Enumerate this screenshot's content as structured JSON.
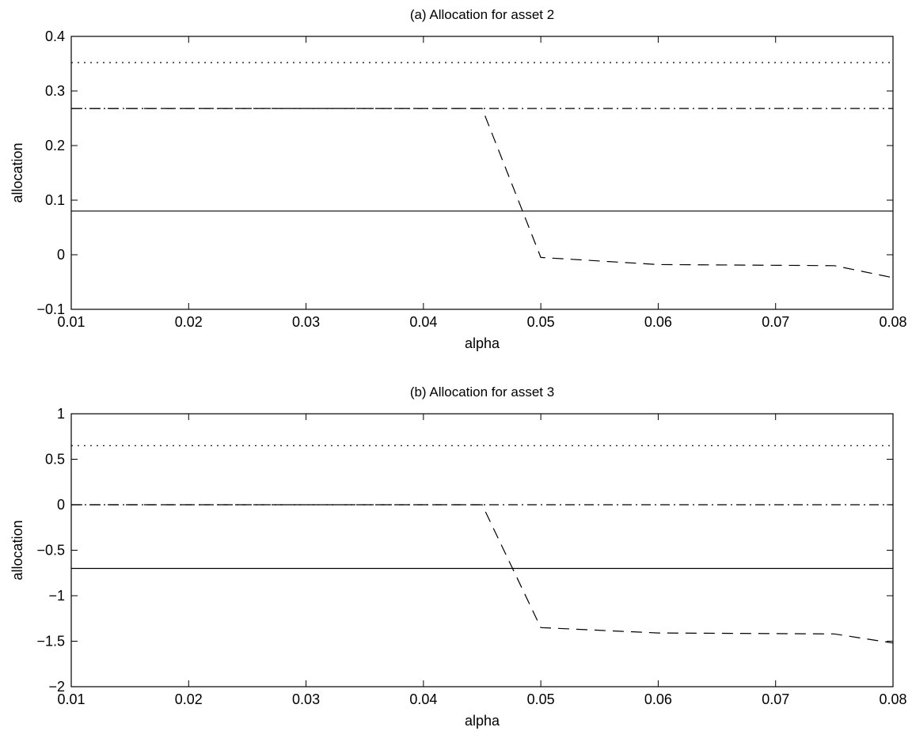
{
  "chart_data": [
    {
      "type": "line",
      "title": "(a) Allocation for asset 2",
      "xlabel": "alpha",
      "ylabel": "allocation",
      "xlim": [
        0.01,
        0.08
      ],
      "ylim": [
        -0.1,
        0.4
      ],
      "xticks": [
        "0.01",
        "0.02",
        "0.03",
        "0.04",
        "0.05",
        "0.06",
        "0.07",
        "0.08"
      ],
      "yticks": [
        "−0.1",
        "0",
        "0.1",
        "0.2",
        "0.3",
        "0.4"
      ],
      "grid": false,
      "series": [
        {
          "style": "dotted",
          "x": [
            0.01,
            0.08
          ],
          "y": [
            0.352,
            0.352
          ]
        },
        {
          "style": "dashdot",
          "x": [
            0.01,
            0.08
          ],
          "y": [
            0.268,
            0.268
          ]
        },
        {
          "style": "solid",
          "x": [
            0.01,
            0.08
          ],
          "y": [
            0.08,
            0.08
          ]
        },
        {
          "style": "dashed",
          "x": [
            0.01,
            0.045,
            0.05,
            0.06,
            0.075,
            0.08
          ],
          "y": [
            0.268,
            0.268,
            -0.005,
            -0.018,
            -0.02,
            -0.042
          ]
        }
      ]
    },
    {
      "type": "line",
      "title": "(b) Allocation for asset 3",
      "xlabel": "alpha",
      "ylabel": "allocation",
      "xlim": [
        0.01,
        0.08
      ],
      "ylim": [
        -2,
        1
      ],
      "xticks": [
        "0.01",
        "0.02",
        "0.03",
        "0.04",
        "0.05",
        "0.06",
        "0.07",
        "0.08"
      ],
      "yticks": [
        "−2",
        "−1.5",
        "−1",
        "−0.5",
        "0",
        "0.5",
        "1"
      ],
      "grid": false,
      "series": [
        {
          "style": "dotted",
          "x": [
            0.01,
            0.08
          ],
          "y": [
            0.65,
            0.65
          ]
        },
        {
          "style": "dashdot",
          "x": [
            0.01,
            0.08
          ],
          "y": [
            0.0,
            0.0
          ]
        },
        {
          "style": "solid",
          "x": [
            0.01,
            0.08
          ],
          "y": [
            -0.7,
            -0.7
          ]
        },
        {
          "style": "dashed",
          "x": [
            0.01,
            0.045,
            0.05,
            0.06,
            0.075,
            0.08
          ],
          "y": [
            0.0,
            0.0,
            -1.35,
            -1.41,
            -1.42,
            -1.52
          ]
        }
      ]
    }
  ]
}
